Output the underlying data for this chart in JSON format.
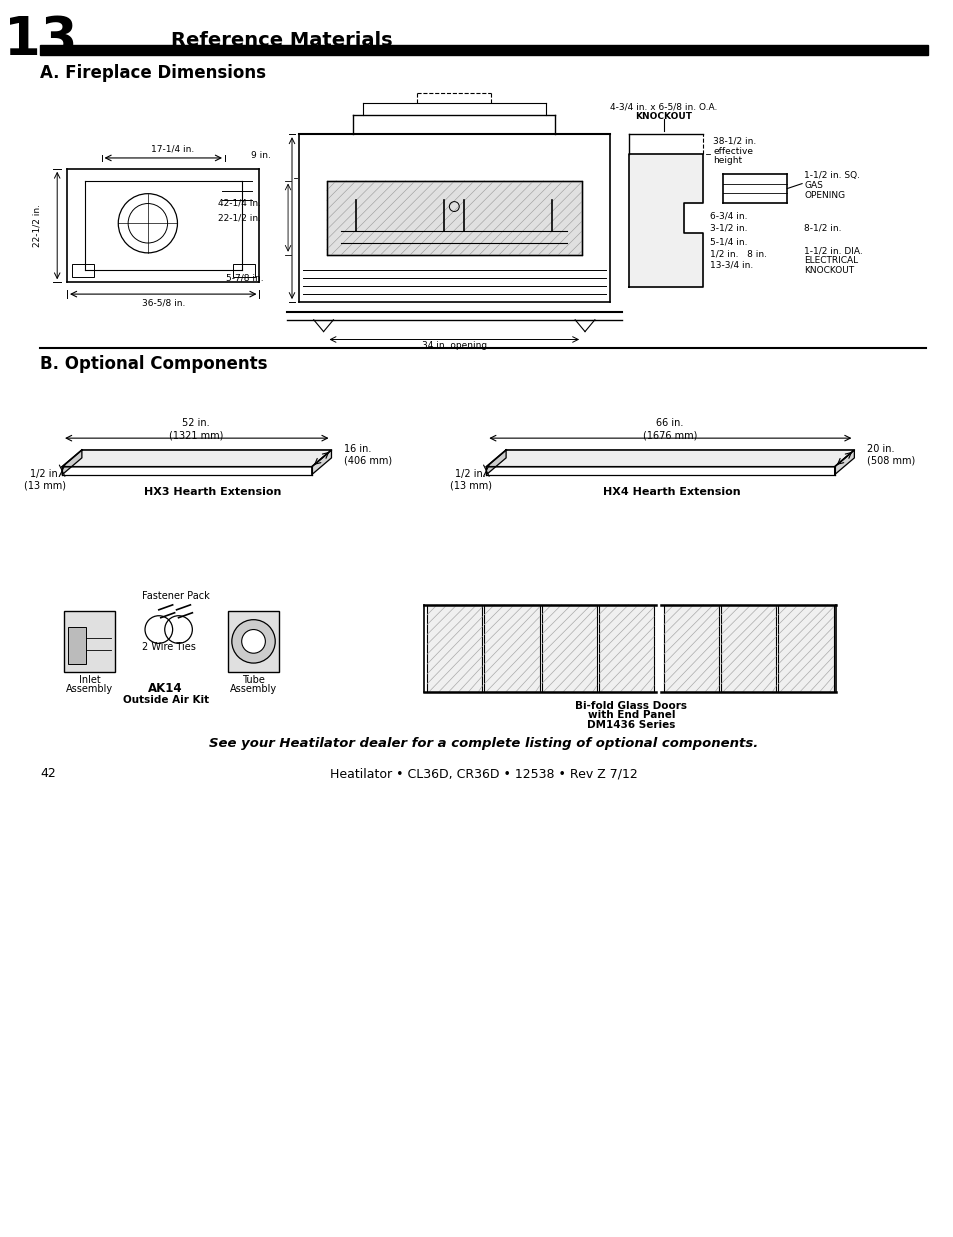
{
  "page_title_number": "13",
  "page_title_text": "Reference Materials",
  "section_a_title": "A. Fireplace Dimensions",
  "section_b_title": "B. Optional Components",
  "footer_italic": "See your Heatilator dealer for a complete listing of optional components.",
  "footer_page": "42",
  "footer_center": "Heatilator • CL36D, CR36D • 12538 • Rev Z 7/12",
  "bg_color": "#ffffff",
  "line_color": "#000000"
}
